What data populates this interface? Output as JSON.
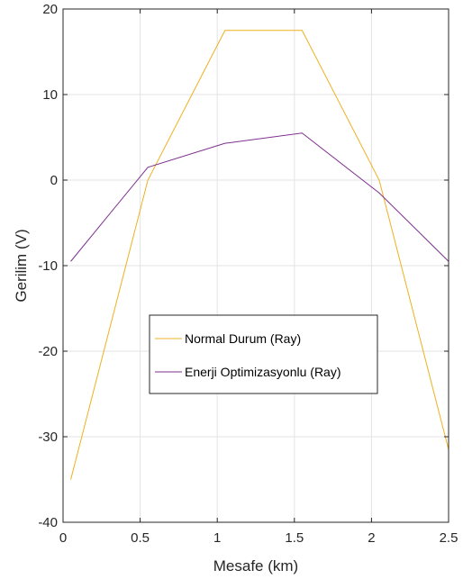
{
  "chart_data": {
    "type": "line",
    "title": "",
    "xlabel": "Mesafe (km)",
    "ylabel": "Gerilim (V)",
    "xlim": [
      0,
      2.5
    ],
    "ylim": [
      -40,
      20
    ],
    "xticks": [
      0,
      0.5,
      1,
      1.5,
      2,
      2.5
    ],
    "xtick_labels": [
      "0",
      "0.5",
      "1",
      "1.5",
      "2",
      "2.5"
    ],
    "yticks": [
      -40,
      -30,
      -20,
      -10,
      0,
      10,
      20
    ],
    "ytick_labels": [
      "-40",
      "-30",
      "-20",
      "-10",
      "0",
      "10",
      "20"
    ],
    "grid": true,
    "legend_position": "center",
    "series": [
      {
        "name": "Normal Durum (Ray)",
        "color": "#EDB120",
        "x": [
          0.05,
          0.55,
          1.05,
          1.55,
          2.05,
          2.5
        ],
        "y": [
          -35,
          0,
          17.5,
          17.5,
          0,
          -31.5
        ]
      },
      {
        "name": "Enerji Optimizasyonlu (Ray)",
        "color": "#7E2F8E",
        "x": [
          0.05,
          0.55,
          1.05,
          1.55,
          2.05,
          2.5
        ],
        "y": [
          -9.5,
          1.5,
          4.3,
          5.5,
          -1.5,
          -9.5
        ]
      }
    ]
  }
}
